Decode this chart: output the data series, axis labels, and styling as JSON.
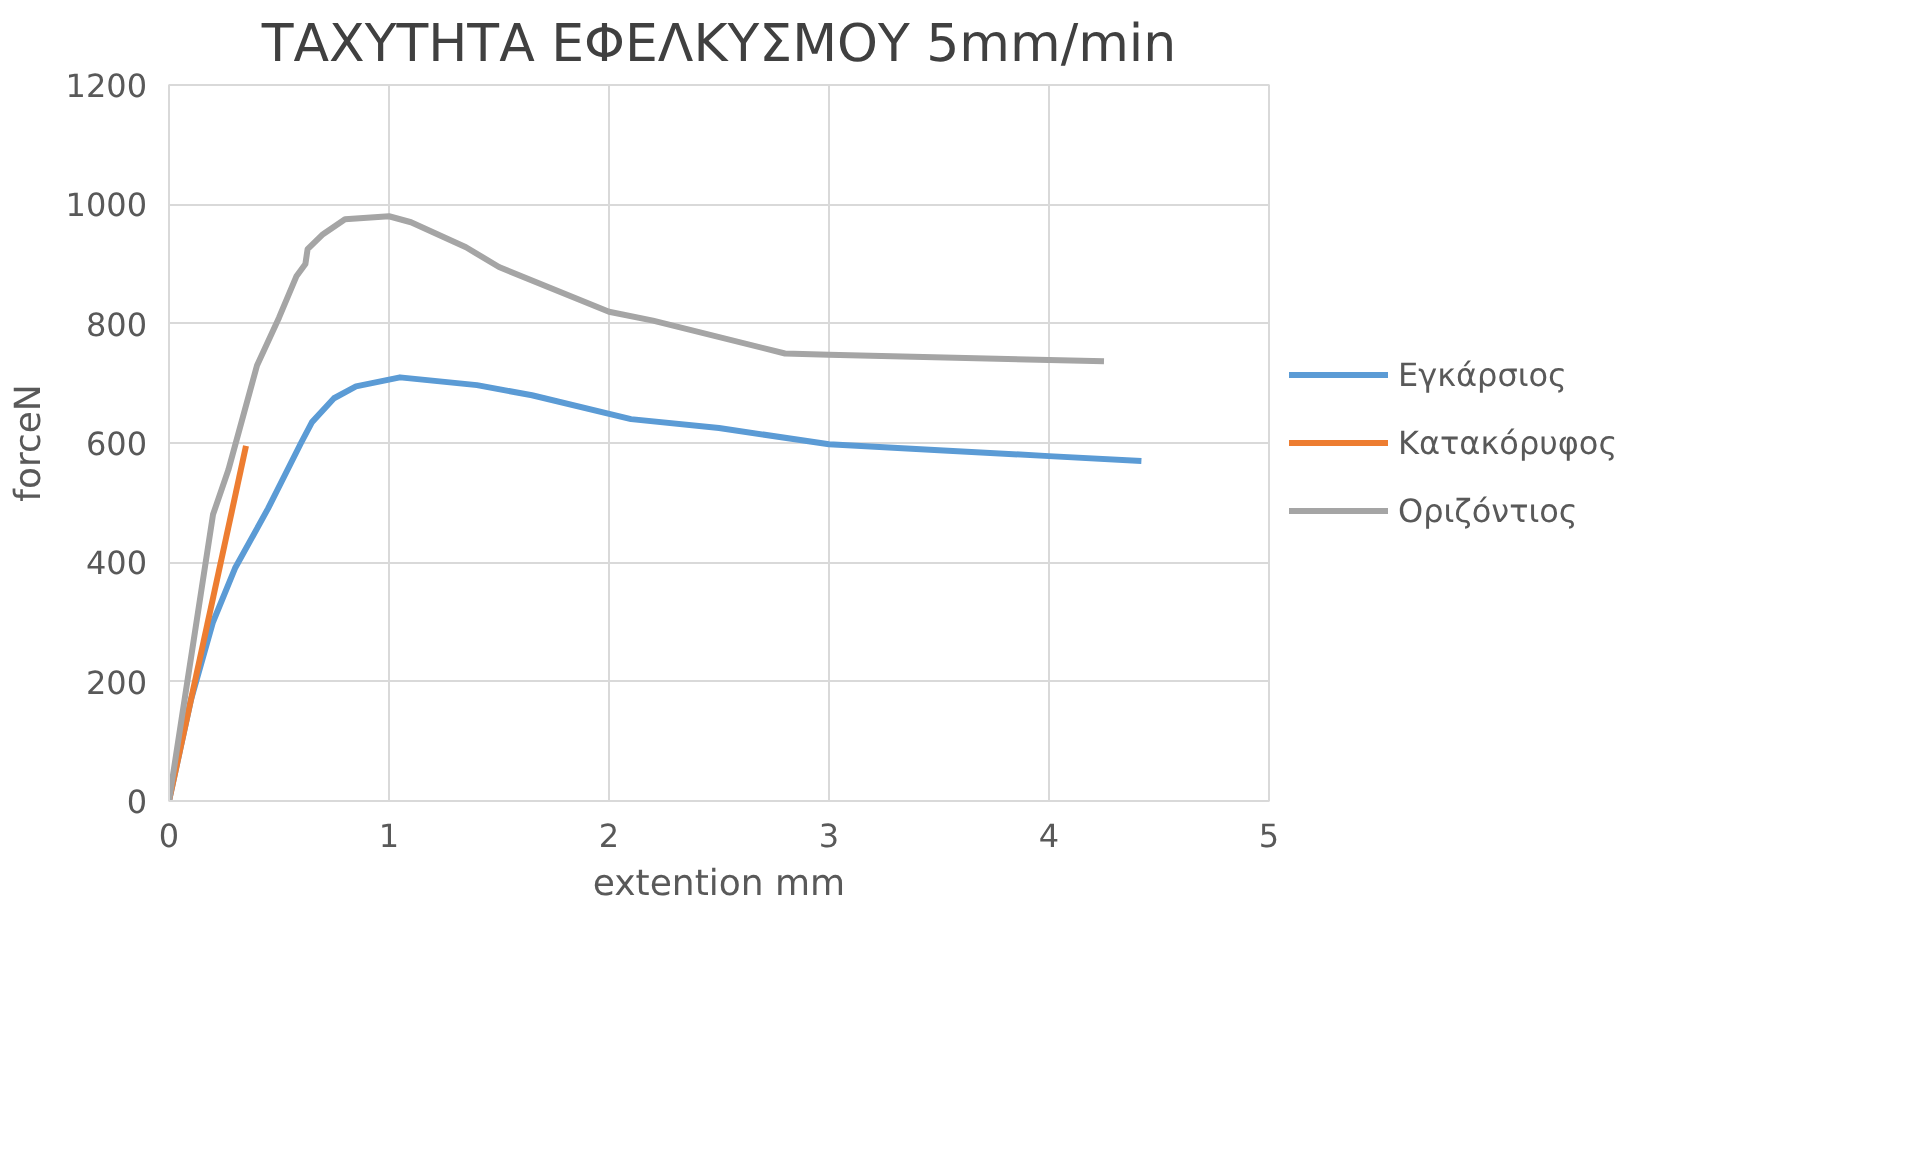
{
  "chart_data": {
    "type": "line",
    "title": "ΤΑΧΥΤΗΤΑ ΕΦΕΛΚΥΣΜΟΥ 5mm/min",
    "xlabel": "extention mm",
    "ylabel": "forceN",
    "xlim": [
      0,
      5
    ],
    "xticks": [
      0,
      1,
      2,
      3,
      4,
      5
    ],
    "ylim": [
      0,
      1200
    ],
    "yticks": [
      0,
      200,
      400,
      600,
      800,
      1000,
      1200
    ],
    "grid": true,
    "legend": "right",
    "marker": "none",
    "line_style": "solid",
    "series": [
      {
        "name": "Εγκάρσιος",
        "color": "#5b9bd5",
        "x": [
          0,
          0.1,
          0.2,
          0.3,
          0.45,
          0.6,
          0.65,
          0.75,
          0.85,
          1.05,
          1.4,
          1.65,
          2.1,
          2.5,
          3.0,
          3.5,
          4.0,
          4.42
        ],
        "values": [
          0,
          170,
          300,
          390,
          490,
          600,
          635,
          675,
          695,
          710,
          697,
          680,
          640,
          625,
          598,
          588,
          578,
          570
        ]
      },
      {
        "name": "Κατακόρυφος",
        "color": "#ed7d31",
        "x": [
          0,
          0.35
        ],
        "values": [
          0,
          595
        ]
      },
      {
        "name": "Οριζόντιος",
        "color": "#a5a5a5",
        "x": [
          0,
          0.1,
          0.2,
          0.27,
          0.4,
          0.5,
          0.58,
          0.62,
          0.63,
          0.7,
          0.8,
          1.0,
          1.1,
          1.35,
          1.5,
          2.0,
          2.2,
          2.8,
          3.0,
          4.25
        ],
        "values": [
          0,
          240,
          480,
          555,
          730,
          810,
          880,
          900,
          925,
          950,
          975,
          980,
          970,
          928,
          895,
          820,
          805,
          750,
          748,
          737
        ]
      }
    ]
  }
}
